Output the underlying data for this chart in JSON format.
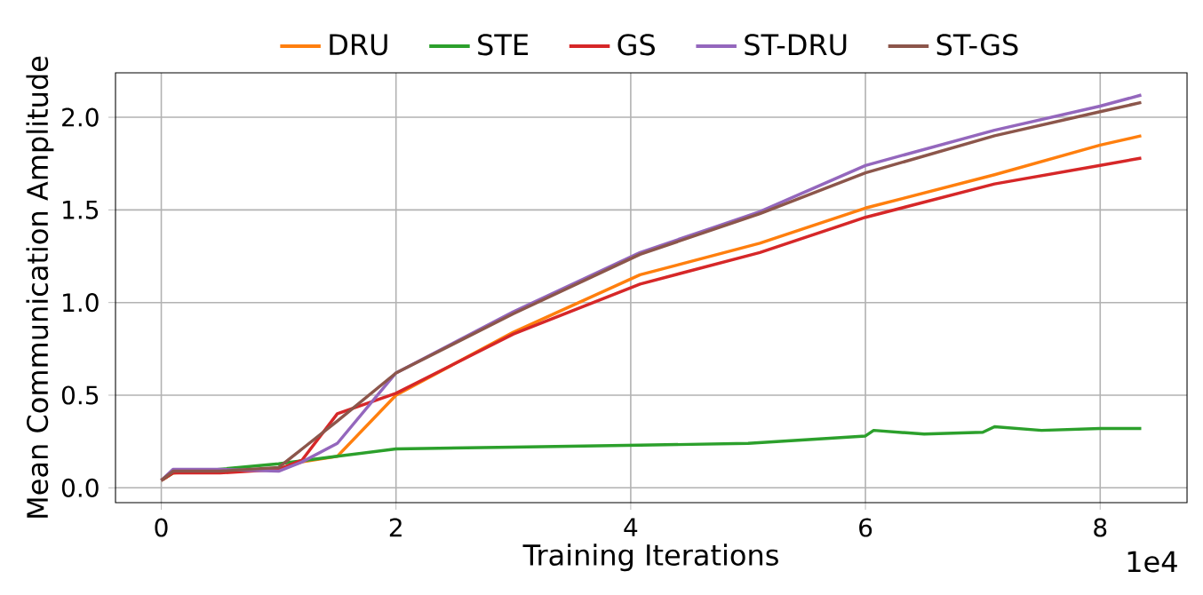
{
  "chart_data": {
    "type": "line",
    "xlabel": "Training Iterations",
    "ylabel": "Mean Communication Amplitude",
    "annotations": [
      "1e4"
    ],
    "xlim": [
      -0.39,
      8.74
    ],
    "ylim": [
      -0.08,
      2.24
    ],
    "xticks": [
      0,
      2,
      4,
      6,
      8
    ],
    "yticks": [
      {
        "value": 0,
        "label": "0.0"
      },
      {
        "value": 0.5,
        "label": "0.5"
      },
      {
        "value": 1,
        "label": "1.0"
      },
      {
        "value": 1.5,
        "label": "1.5"
      },
      {
        "value": 2,
        "label": "2.0"
      }
    ],
    "grid": true,
    "legend": "top",
    "marker": "none",
    "line_style": "solid",
    "series": [
      {
        "name": "DRU",
        "color": "#ff7f0e",
        "x": [
          0,
          0.1,
          0.5,
          1.0,
          1.2,
          1.5,
          2.0,
          3.0,
          4.08,
          5.1,
          6.0,
          7.1,
          8.0,
          8.35
        ],
        "values": [
          0.04,
          0.08,
          0.09,
          0.1,
          0.14,
          0.17,
          0.5,
          0.84,
          1.15,
          1.32,
          1.51,
          1.69,
          1.85,
          1.9
        ]
      },
      {
        "name": "STE",
        "color": "#2ca02c",
        "x": [
          0,
          0.1,
          0.5,
          1.0,
          1.5,
          2.0,
          3.0,
          4.08,
          5.0,
          6.0,
          6.07,
          6.5,
          7.0,
          7.1,
          7.5,
          8.0,
          8.35
        ],
        "values": [
          0.04,
          0.08,
          0.1,
          0.13,
          0.17,
          0.21,
          0.22,
          0.23,
          0.24,
          0.28,
          0.31,
          0.29,
          0.3,
          0.33,
          0.31,
          0.32,
          0.32
        ]
      },
      {
        "name": "GS",
        "color": "#d62728",
        "x": [
          0,
          0.1,
          0.5,
          1.0,
          1.2,
          1.5,
          2.0,
          3.0,
          4.08,
          5.1,
          6.0,
          7.1,
          8.0,
          8.35
        ],
        "values": [
          0.04,
          0.08,
          0.08,
          0.1,
          0.15,
          0.4,
          0.51,
          0.83,
          1.1,
          1.27,
          1.46,
          1.64,
          1.74,
          1.78
        ]
      },
      {
        "name": "ST-DRU",
        "color": "#9467bd",
        "x": [
          0,
          0.1,
          0.5,
          1.0,
          1.2,
          1.5,
          2.0,
          3.0,
          4.08,
          5.1,
          6.0,
          7.1,
          8.0,
          8.35
        ],
        "values": [
          0.04,
          0.1,
          0.1,
          0.09,
          0.14,
          0.24,
          0.62,
          0.95,
          1.27,
          1.49,
          1.74,
          1.93,
          2.06,
          2.12
        ]
      },
      {
        "name": "ST-GS",
        "color": "#8c564b",
        "x": [
          0,
          0.1,
          0.5,
          1.0,
          1.2,
          1.5,
          2.0,
          3.0,
          4.08,
          5.1,
          6.0,
          7.1,
          8.0,
          8.35
        ],
        "values": [
          0.04,
          0.09,
          0.09,
          0.11,
          0.21,
          0.36,
          0.62,
          0.94,
          1.26,
          1.48,
          1.7,
          1.9,
          2.03,
          2.08
        ]
      }
    ]
  }
}
